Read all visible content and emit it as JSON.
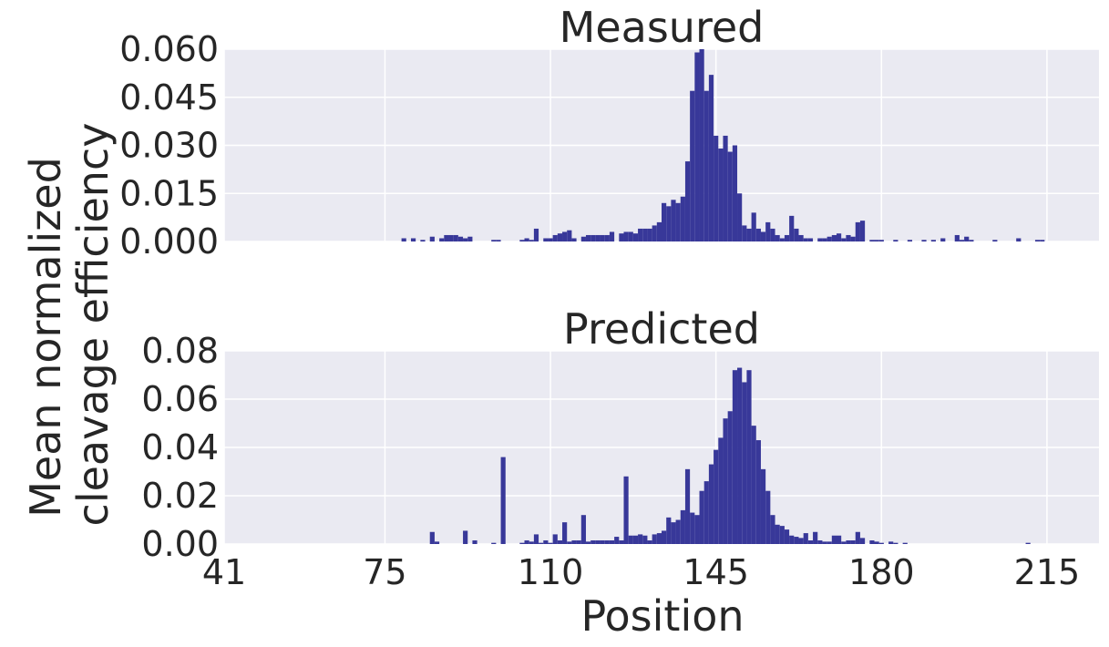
{
  "chart_data": {
    "type": "bar",
    "shared_xlabel": "Position",
    "shared_ylabel": [
      "Mean normalized",
      "cleavage efficiency"
    ],
    "bar_color": "#383899",
    "background_color": "#eaeaf2",
    "grid_color": "#ffffff",
    "grid": true,
    "x_range": [
      41,
      226
    ],
    "x_ticks": [
      41,
      75,
      110,
      145,
      180,
      215
    ],
    "panels": [
      {
        "title": "Measured",
        "ylim": [
          0,
          0.06
        ],
        "y_ticks": [
          "0.000",
          "0.015",
          "0.030",
          "0.045",
          "0.060"
        ],
        "bars": [
          {
            "x": 79,
            "y": 0.001
          },
          {
            "x": 81,
            "y": 0.001
          },
          {
            "x": 83,
            "y": 0.0005
          },
          {
            "x": 85,
            "y": 0.0015
          },
          {
            "x": 87,
            "y": 0.001
          },
          {
            "x": 88,
            "y": 0.002
          },
          {
            "x": 89,
            "y": 0.002
          },
          {
            "x": 90,
            "y": 0.002
          },
          {
            "x": 91,
            "y": 0.0015
          },
          {
            "x": 92,
            "y": 0.001
          },
          {
            "x": 93,
            "y": 0.0015
          },
          {
            "x": 98,
            "y": 0.0005
          },
          {
            "x": 99,
            "y": 0.0005
          },
          {
            "x": 104,
            "y": 0.0005
          },
          {
            "x": 105,
            "y": 0.001
          },
          {
            "x": 106,
            "y": 0.0005
          },
          {
            "x": 107,
            "y": 0.004
          },
          {
            "x": 109,
            "y": 0.001
          },
          {
            "x": 110,
            "y": 0.001
          },
          {
            "x": 111,
            "y": 0.002
          },
          {
            "x": 112,
            "y": 0.0025
          },
          {
            "x": 113,
            "y": 0.003
          },
          {
            "x": 114,
            "y": 0.0035
          },
          {
            "x": 115,
            "y": 0.001
          },
          {
            "x": 117,
            "y": 0.0015
          },
          {
            "x": 118,
            "y": 0.002
          },
          {
            "x": 119,
            "y": 0.002
          },
          {
            "x": 120,
            "y": 0.002
          },
          {
            "x": 121,
            "y": 0.002
          },
          {
            "x": 122,
            "y": 0.002
          },
          {
            "x": 123,
            "y": 0.003
          },
          {
            "x": 125,
            "y": 0.0025
          },
          {
            "x": 126,
            "y": 0.003
          },
          {
            "x": 127,
            "y": 0.003
          },
          {
            "x": 128,
            "y": 0.0025
          },
          {
            "x": 129,
            "y": 0.004
          },
          {
            "x": 130,
            "y": 0.004
          },
          {
            "x": 131,
            "y": 0.004
          },
          {
            "x": 132,
            "y": 0.005
          },
          {
            "x": 133,
            "y": 0.006
          },
          {
            "x": 134,
            "y": 0.012
          },
          {
            "x": 135,
            "y": 0.011
          },
          {
            "x": 136,
            "y": 0.013
          },
          {
            "x": 137,
            "y": 0.012
          },
          {
            "x": 138,
            "y": 0.014
          },
          {
            "x": 139,
            "y": 0.025
          },
          {
            "x": 140,
            "y": 0.047
          },
          {
            "x": 141,
            "y": 0.059
          },
          {
            "x": 142,
            "y": 0.06
          },
          {
            "x": 143,
            "y": 0.047
          },
          {
            "x": 144,
            "y": 0.052
          },
          {
            "x": 145,
            "y": 0.033
          },
          {
            "x": 146,
            "y": 0.029
          },
          {
            "x": 147,
            "y": 0.033
          },
          {
            "x": 148,
            "y": 0.028
          },
          {
            "x": 149,
            "y": 0.03
          },
          {
            "x": 150,
            "y": 0.015
          },
          {
            "x": 151,
            "y": 0.005
          },
          {
            "x": 152,
            "y": 0.004
          },
          {
            "x": 153,
            "y": 0.009
          },
          {
            "x": 154,
            "y": 0.004
          },
          {
            "x": 155,
            "y": 0.003
          },
          {
            "x": 156,
            "y": 0.006
          },
          {
            "x": 157,
            "y": 0.004
          },
          {
            "x": 158,
            "y": 0.002
          },
          {
            "x": 159,
            "y": 0.001
          },
          {
            "x": 160,
            "y": 0.002
          },
          {
            "x": 161,
            "y": 0.008
          },
          {
            "x": 162,
            "y": 0.004
          },
          {
            "x": 163,
            "y": 0.002
          },
          {
            "x": 164,
            "y": 0.001
          },
          {
            "x": 165,
            "y": 0.001
          },
          {
            "x": 167,
            "y": 0.001
          },
          {
            "x": 168,
            "y": 0.001
          },
          {
            "x": 169,
            "y": 0.0015
          },
          {
            "x": 170,
            "y": 0.002
          },
          {
            "x": 171,
            "y": 0.0025
          },
          {
            "x": 172,
            "y": 0.001
          },
          {
            "x": 173,
            "y": 0.002
          },
          {
            "x": 174,
            "y": 0.0015
          },
          {
            "x": 175,
            "y": 0.006
          },
          {
            "x": 176,
            "y": 0.0065
          },
          {
            "x": 178,
            "y": 0.0005
          },
          {
            "x": 179,
            "y": 0.0005
          },
          {
            "x": 180,
            "y": 0.0005
          },
          {
            "x": 183,
            "y": 0.0005
          },
          {
            "x": 186,
            "y": 0.0005
          },
          {
            "x": 189,
            "y": 0.0005
          },
          {
            "x": 191,
            "y": 0.0005
          },
          {
            "x": 193,
            "y": 0.001
          },
          {
            "x": 196,
            "y": 0.002
          },
          {
            "x": 197,
            "y": 0.0005
          },
          {
            "x": 198,
            "y": 0.0015
          },
          {
            "x": 199,
            "y": 0.0005
          },
          {
            "x": 204,
            "y": 0.0005
          },
          {
            "x": 209,
            "y": 0.001
          },
          {
            "x": 213,
            "y": 0.0005
          },
          {
            "x": 214,
            "y": 0.0005
          }
        ]
      },
      {
        "title": "Predicted",
        "ylim": [
          0,
          0.08
        ],
        "y_ticks": [
          "0.00",
          "0.02",
          "0.04",
          "0.06",
          "0.08"
        ],
        "bars": [
          {
            "x": 85,
            "y": 0.005
          },
          {
            "x": 86,
            "y": 0.001
          },
          {
            "x": 92,
            "y": 0.0055
          },
          {
            "x": 94,
            "y": 0.0015
          },
          {
            "x": 98,
            "y": 0.0005
          },
          {
            "x": 100,
            "y": 0.036
          },
          {
            "x": 104,
            "y": 0.0005
          },
          {
            "x": 105,
            "y": 0.0015
          },
          {
            "x": 106,
            "y": 0.001
          },
          {
            "x": 107,
            "y": 0.004
          },
          {
            "x": 108,
            "y": 0.0005
          },
          {
            "x": 109,
            "y": 0.0015
          },
          {
            "x": 110,
            "y": 0.0005
          },
          {
            "x": 111,
            "y": 0.004
          },
          {
            "x": 112,
            "y": 0.0015
          },
          {
            "x": 113,
            "y": 0.009
          },
          {
            "x": 114,
            "y": 0.001
          },
          {
            "x": 115,
            "y": 0.0015
          },
          {
            "x": 116,
            "y": 0.0015
          },
          {
            "x": 117,
            "y": 0.012
          },
          {
            "x": 118,
            "y": 0.001
          },
          {
            "x": 119,
            "y": 0.0015
          },
          {
            "x": 120,
            "y": 0.0015
          },
          {
            "x": 121,
            "y": 0.0015
          },
          {
            "x": 122,
            "y": 0.0015
          },
          {
            "x": 123,
            "y": 0.0015
          },
          {
            "x": 124,
            "y": 0.003
          },
          {
            "x": 125,
            "y": 0.0015
          },
          {
            "x": 126,
            "y": 0.028
          },
          {
            "x": 127,
            "y": 0.0035
          },
          {
            "x": 128,
            "y": 0.0035
          },
          {
            "x": 129,
            "y": 0.004
          },
          {
            "x": 130,
            "y": 0.0035
          },
          {
            "x": 131,
            "y": 0.0015
          },
          {
            "x": 132,
            "y": 0.004
          },
          {
            "x": 133,
            "y": 0.0045
          },
          {
            "x": 134,
            "y": 0.0055
          },
          {
            "x": 135,
            "y": 0.011
          },
          {
            "x": 136,
            "y": 0.009
          },
          {
            "x": 137,
            "y": 0.01
          },
          {
            "x": 138,
            "y": 0.014
          },
          {
            "x": 139,
            "y": 0.031
          },
          {
            "x": 140,
            "y": 0.013
          },
          {
            "x": 141,
            "y": 0.012
          },
          {
            "x": 142,
            "y": 0.022
          },
          {
            "x": 143,
            "y": 0.026
          },
          {
            "x": 144,
            "y": 0.033
          },
          {
            "x": 145,
            "y": 0.039
          },
          {
            "x": 146,
            "y": 0.044
          },
          {
            "x": 147,
            "y": 0.052
          },
          {
            "x": 148,
            "y": 0.055
          },
          {
            "x": 149,
            "y": 0.072
          },
          {
            "x": 150,
            "y": 0.073
          },
          {
            "x": 151,
            "y": 0.067
          },
          {
            "x": 152,
            "y": 0.072
          },
          {
            "x": 153,
            "y": 0.049
          },
          {
            "x": 154,
            "y": 0.043
          },
          {
            "x": 155,
            "y": 0.031
          },
          {
            "x": 156,
            "y": 0.022
          },
          {
            "x": 157,
            "y": 0.012
          },
          {
            "x": 158,
            "y": 0.008
          },
          {
            "x": 159,
            "y": 0.0075
          },
          {
            "x": 160,
            "y": 0.006
          },
          {
            "x": 161,
            "y": 0.0035
          },
          {
            "x": 162,
            "y": 0.003
          },
          {
            "x": 163,
            "y": 0.0025
          },
          {
            "x": 164,
            "y": 0.0045
          },
          {
            "x": 165,
            "y": 0.0015
          },
          {
            "x": 166,
            "y": 0.005
          },
          {
            "x": 167,
            "y": 0.0015
          },
          {
            "x": 168,
            "y": 0.001
          },
          {
            "x": 169,
            "y": 0.001
          },
          {
            "x": 170,
            "y": 0.0035
          },
          {
            "x": 171,
            "y": 0.0035
          },
          {
            "x": 172,
            "y": 0.001
          },
          {
            "x": 173,
            "y": 0.0015
          },
          {
            "x": 174,
            "y": 0.0015
          },
          {
            "x": 175,
            "y": 0.005
          },
          {
            "x": 176,
            "y": 0.0025
          },
          {
            "x": 178,
            "y": 0.0015
          },
          {
            "x": 179,
            "y": 0.001
          },
          {
            "x": 180,
            "y": 0.0005
          },
          {
            "x": 182,
            "y": 0.001
          },
          {
            "x": 183,
            "y": 0.0005
          },
          {
            "x": 185,
            "y": 0.0005
          },
          {
            "x": 211,
            "y": 0.0005
          }
        ]
      }
    ]
  }
}
